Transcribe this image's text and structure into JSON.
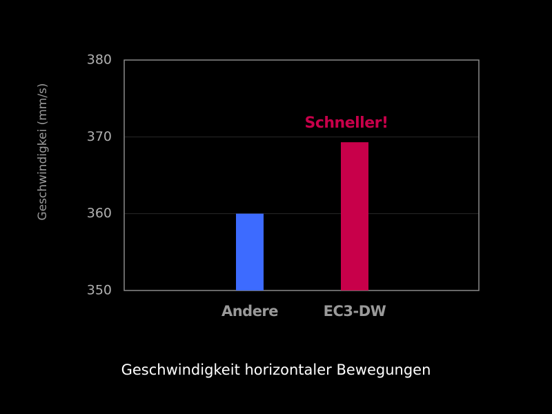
{
  "chart_data": {
    "type": "bar",
    "title": "Geschwindigkeit horizontaler Bewegungen",
    "y_label": "Geschwindigkei (mm/s)",
    "annotation": "Schneller!",
    "categories": [
      "Andere",
      "EC3-DW"
    ],
    "values": [
      360,
      369.3
    ],
    "colors": [
      "#3d6bff",
      "#c8004a"
    ],
    "ylim": [
      350,
      380
    ],
    "yticks": [
      350,
      360,
      370,
      380
    ],
    "grid": true
  }
}
